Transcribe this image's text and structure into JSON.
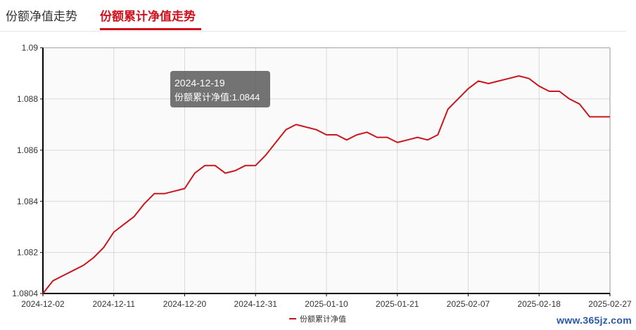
{
  "tabs": [
    {
      "label": "份额净值走势",
      "active": false
    },
    {
      "label": "份额累计净值走势",
      "active": true
    }
  ],
  "accent_color": "#d0101c",
  "tooltip": {
    "date": "2024-12-19",
    "text": "份额累计净值:1.0844"
  },
  "watermark": "www.365jz.com",
  "chart_data": {
    "type": "line",
    "title": "",
    "xlabel": "",
    "ylabel": "",
    "ylim": [
      1.0804,
      1.09
    ],
    "y_ticks": [
      "1.0804",
      "1.082",
      "1.084",
      "1.086",
      "1.088",
      "1.09"
    ],
    "x_ticks": [
      "2024-12-02",
      "2024-12-11",
      "2024-12-20",
      "2024-12-31",
      "2025-01-10",
      "2025-01-21",
      "2025-02-07",
      "2025-02-18",
      "2025-02-27"
    ],
    "grid": true,
    "legend_position": "bottom-center",
    "series": [
      {
        "name": "份额累计净值",
        "color": "#c9171e",
        "values": [
          1.0804,
          1.0809,
          1.0811,
          1.0813,
          1.0815,
          1.0818,
          1.0822,
          1.0828,
          1.0831,
          1.0834,
          1.0839,
          1.0843,
          1.0843,
          1.0844,
          1.0845,
          1.0851,
          1.0854,
          1.0854,
          1.0851,
          1.0852,
          1.0854,
          1.0854,
          1.0858,
          1.0863,
          1.0868,
          1.087,
          1.0869,
          1.0868,
          1.0866,
          1.0866,
          1.0864,
          1.0866,
          1.0867,
          1.0865,
          1.0865,
          1.0863,
          1.0864,
          1.0865,
          1.0864,
          1.0866,
          1.0876,
          1.088,
          1.0884,
          1.0887,
          1.0886,
          1.0887,
          1.0888,
          1.0889,
          1.0888,
          1.0885,
          1.0883,
          1.0883,
          1.088,
          1.0878,
          1.0873,
          1.0873,
          1.0873
        ]
      }
    ]
  }
}
